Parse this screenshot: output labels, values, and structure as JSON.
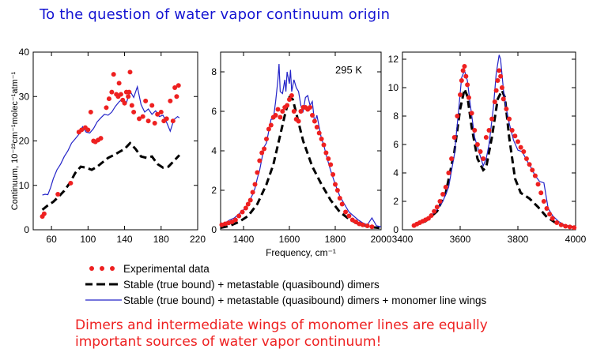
{
  "slide": {
    "title": "To the question of water vapor continuum origin",
    "conclusion_line1": "Dimers and intermediate wings of monomer lines are equally",
    "conclusion_line2": "important sources of water vapor continuum!"
  },
  "colors": {
    "experimental": "#ee2020",
    "dimers": "#000000",
    "dimers_wings": "#2323c8",
    "title": "#1414d2"
  },
  "legend": [
    {
      "key": "experimental",
      "label": "Experimental data",
      "style": "dots"
    },
    {
      "key": "dimers",
      "label": "Stable (true bound)  +  metastable (quasibound) dimers",
      "style": "dashed"
    },
    {
      "key": "dimers_wings",
      "label": "Stable (true bound)  +  metastable (quasibound) dimers + monomer line wings",
      "style": "solid"
    }
  ],
  "chart_data": [
    {
      "type": "line",
      "title": "",
      "xlabel": "",
      "ylabel": "Continuum,  10⁻²³cm⁻¹molec⁻¹atm⁻¹",
      "xlim": [
        40,
        220
      ],
      "ylim": [
        0,
        40
      ],
      "xticks": [
        60,
        100,
        140,
        180,
        220
      ],
      "yticks": [
        0,
        10,
        20,
        30,
        40
      ],
      "annotation": "",
      "series": [
        {
          "key": "experimental",
          "type": "scatter",
          "x": [
            50,
            52,
            67,
            81,
            90,
            93,
            97,
            100,
            103,
            106,
            108,
            111,
            114,
            120,
            123,
            126,
            128,
            131,
            133,
            134,
            136,
            138,
            140,
            142,
            144,
            145,
            146,
            148,
            150,
            156,
            160,
            163,
            166,
            170,
            173,
            176,
            180,
            183,
            186,
            190,
            193,
            195,
            197,
            199
          ],
          "y": [
            3,
            3.6,
            8,
            10.5,
            22,
            22.5,
            23,
            22.5,
            26.5,
            20,
            19.8,
            20.2,
            20.6,
            27.5,
            29.5,
            31,
            35,
            30.5,
            30,
            33,
            30.5,
            29.2,
            28.5,
            31,
            30,
            31,
            35.5,
            28,
            26.5,
            25,
            25.5,
            29,
            24.5,
            28,
            24,
            26,
            26.5,
            24.5,
            25,
            29,
            24.5,
            32,
            30,
            32.5
          ]
        },
        {
          "key": "dimers",
          "type": "line",
          "x": [
            50,
            56,
            62,
            68,
            74,
            80,
            86,
            92,
            98,
            104,
            110,
            116,
            122,
            128,
            134,
            140,
            146,
            152,
            158,
            164,
            170,
            176,
            182,
            188,
            194,
            200
          ],
          "y": [
            4.5,
            5.5,
            6.3,
            7.5,
            8.8,
            10.5,
            12.8,
            14.2,
            14.0,
            13.5,
            14.2,
            15.2,
            16.2,
            16.8,
            17.5,
            18.2,
            19.5,
            18.2,
            16.5,
            16.2,
            16.5,
            14.8,
            14.0,
            14.2,
            15.5,
            16.8
          ]
        },
        {
          "key": "dimers_wings",
          "type": "line",
          "x": [
            50,
            53,
            56,
            59,
            62,
            66,
            70,
            74,
            78,
            82,
            86,
            90,
            94,
            98,
            102,
            106,
            110,
            114,
            118,
            122,
            126,
            130,
            134,
            138,
            142,
            146,
            150,
            154,
            158,
            162,
            166,
            170,
            174,
            178,
            182,
            186,
            190,
            194,
            198,
            200
          ],
          "y": [
            7.8,
            8.0,
            7.9,
            9.5,
            11.5,
            13.5,
            14.8,
            16.5,
            17.8,
            19.5,
            20.5,
            21.5,
            23.2,
            22.0,
            21.8,
            22.8,
            24.3,
            25.2,
            26.0,
            25.8,
            26.5,
            27.8,
            28.8,
            29.5,
            28.6,
            31.2,
            29.8,
            32.2,
            28.2,
            26.5,
            27.2,
            26.0,
            26.8,
            25.5,
            25.8,
            24.2,
            22.2,
            24.8,
            25.5,
            25.2
          ]
        }
      ]
    },
    {
      "type": "line",
      "title": "",
      "xlabel": "Frequency,  cm⁻¹",
      "ylabel": "",
      "xlim": [
        1300,
        2000
      ],
      "ylim": [
        0,
        9
      ],
      "xticks": [
        1400,
        1600,
        1800,
        2000
      ],
      "yticks": [
        0,
        2,
        4,
        6,
        8
      ],
      "annotation": "295 K",
      "series": [
        {
          "key": "experimental",
          "type": "scatter",
          "x": [
            1305,
            1320,
            1335,
            1350,
            1365,
            1380,
            1395,
            1410,
            1420,
            1430,
            1440,
            1450,
            1460,
            1470,
            1480,
            1490,
            1500,
            1510,
            1520,
            1530,
            1540,
            1550,
            1560,
            1570,
            1580,
            1590,
            1600,
            1610,
            1620,
            1630,
            1640,
            1650,
            1660,
            1670,
            1680,
            1690,
            1700,
            1710,
            1720,
            1730,
            1740,
            1750,
            1760,
            1770,
            1780,
            1790,
            1800,
            1810,
            1820,
            1830,
            1845,
            1860,
            1875,
            1890,
            1905,
            1920,
            1940,
            1960
          ],
          "y": [
            0.25,
            0.3,
            0.35,
            0.4,
            0.5,
            0.7,
            0.9,
            1.1,
            1.3,
            1.5,
            1.9,
            2.3,
            2.9,
            3.5,
            3.9,
            4.1,
            4.6,
            5.1,
            5.3,
            5.7,
            5.8,
            6.1,
            5.7,
            6.0,
            6.2,
            6.3,
            6.6,
            6.8,
            6.0,
            5.6,
            5.5,
            6.0,
            6.2,
            6.2,
            6.1,
            6.2,
            5.8,
            5.5,
            5.2,
            4.9,
            4.6,
            4.3,
            3.9,
            3.6,
            3.3,
            2.8,
            2.3,
            2.0,
            1.6,
            1.3,
            0.9,
            0.7,
            0.5,
            0.4,
            0.3,
            0.25,
            0.2,
            0.15
          ]
        },
        {
          "key": "dimers",
          "type": "line",
          "x": [
            1300,
            1340,
            1380,
            1420,
            1460,
            1500,
            1530,
            1560,
            1580,
            1600,
            1615,
            1630,
            1660,
            1700,
            1740,
            1780,
            1820,
            1860,
            1900,
            1950,
            2000
          ],
          "y": [
            0.1,
            0.2,
            0.4,
            0.7,
            1.3,
            2.3,
            3.3,
            4.8,
            5.8,
            6.7,
            6.6,
            5.9,
            4.5,
            3.2,
            2.3,
            1.5,
            0.9,
            0.55,
            0.3,
            0.15,
            0.08
          ]
        },
        {
          "key": "dimers_wings",
          "type": "line",
          "x": [
            1300,
            1320,
            1340,
            1360,
            1380,
            1400,
            1420,
            1440,
            1450,
            1460,
            1470,
            1480,
            1490,
            1500,
            1510,
            1520,
            1530,
            1540,
            1550,
            1555,
            1560,
            1570,
            1580,
            1585,
            1590,
            1600,
            1605,
            1610,
            1620,
            1630,
            1640,
            1650,
            1660,
            1670,
            1680,
            1690,
            1700,
            1710,
            1720,
            1730,
            1740,
            1750,
            1760,
            1780,
            1800,
            1820,
            1840,
            1860,
            1880,
            1900,
            1920,
            1940,
            1960,
            1980,
            2000
          ],
          "y": [
            0.3,
            0.35,
            0.5,
            0.6,
            0.8,
            1.0,
            1.3,
            1.8,
            2.1,
            2.6,
            3.0,
            3.6,
            4.2,
            4.4,
            5.0,
            5.6,
            5.6,
            6.5,
            7.6,
            8.4,
            7.0,
            6.9,
            7.6,
            7.0,
            8.0,
            7.4,
            8.1,
            7.0,
            7.6,
            7.2,
            7.0,
            6.3,
            6.0,
            6.7,
            6.8,
            6.3,
            6.5,
            5.4,
            5.8,
            5.2,
            4.6,
            4.3,
            3.8,
            3.0,
            2.3,
            1.7,
            1.3,
            0.9,
            0.7,
            0.5,
            0.35,
            0.25,
            0.6,
            0.2,
            0.15
          ]
        }
      ]
    },
    {
      "type": "line",
      "title": "",
      "xlabel": "",
      "ylabel": "",
      "xlim": [
        3400,
        4000
      ],
      "ylim": [
        0,
        12.5
      ],
      "xticks": [
        3400,
        3600,
        3800,
        4000
      ],
      "yticks": [
        0,
        2,
        4,
        6,
        8,
        10,
        12
      ],
      "annotation": "",
      "series": [
        {
          "key": "experimental",
          "type": "scatter",
          "x": [
            3440,
            3450,
            3460,
            3470,
            3480,
            3490,
            3500,
            3510,
            3520,
            3530,
            3540,
            3550,
            3560,
            3570,
            3580,
            3590,
            3600,
            3605,
            3610,
            3615,
            3620,
            3625,
            3630,
            3640,
            3650,
            3660,
            3670,
            3680,
            3690,
            3700,
            3710,
            3720,
            3725,
            3730,
            3735,
            3740,
            3745,
            3750,
            3760,
            3770,
            3780,
            3790,
            3800,
            3810,
            3820,
            3830,
            3840,
            3850,
            3860,
            3870,
            3880,
            3890,
            3900,
            3910,
            3920,
            3935,
            3950,
            3965,
            3980,
            3995
          ],
          "y": [
            0.3,
            0.4,
            0.5,
            0.6,
            0.7,
            0.8,
            1.0,
            1.3,
            1.6,
            2.0,
            2.5,
            3.0,
            4.0,
            5.0,
            6.5,
            8.0,
            9.5,
            10.5,
            11.2,
            11.5,
            10.8,
            10.2,
            9.3,
            8.2,
            7.0,
            6.0,
            5.5,
            5.0,
            6.5,
            7.0,
            7.8,
            9.0,
            9.8,
            10.5,
            11.2,
            10.8,
            10.0,
            9.2,
            8.5,
            7.8,
            7.0,
            6.6,
            6.2,
            5.8,
            5.5,
            5.0,
            4.6,
            4.2,
            3.8,
            3.2,
            2.6,
            2.0,
            1.5,
            1.1,
            0.8,
            0.5,
            0.35,
            0.25,
            0.2,
            0.15
          ]
        },
        {
          "key": "dimers",
          "type": "line",
          "x": [
            3440,
            3480,
            3520,
            3550,
            3580,
            3600,
            3615,
            3625,
            3640,
            3660,
            3680,
            3690,
            3710,
            3730,
            3745,
            3755,
            3770,
            3790,
            3810,
            3840,
            3870,
            3900,
            3930,
            3960,
            4000
          ],
          "y": [
            0.3,
            0.6,
            1.3,
            2.6,
            5.5,
            8.5,
            9.9,
            9.4,
            7.2,
            5.0,
            4.2,
            4.4,
            6.5,
            9.2,
            9.8,
            9.3,
            6.5,
            3.6,
            2.6,
            2.2,
            1.6,
            0.9,
            0.5,
            0.3,
            0.15
          ]
        },
        {
          "key": "dimers_wings",
          "type": "line",
          "x": [
            3440,
            3460,
            3480,
            3500,
            3520,
            3540,
            3560,
            3580,
            3595,
            3605,
            3615,
            3625,
            3635,
            3650,
            3665,
            3680,
            3690,
            3700,
            3715,
            3725,
            3735,
            3740,
            3750,
            3760,
            3770,
            3785,
            3800,
            3815,
            3830,
            3845,
            3860,
            3875,
            3890,
            3905,
            3920,
            3940,
            3960,
            3980,
            4000
          ],
          "y": [
            0.4,
            0.5,
            0.7,
            1.0,
            1.4,
            2.0,
            3.0,
            5.3,
            8.5,
            10.7,
            11.2,
            10.5,
            8.8,
            6.5,
            5.5,
            4.5,
            5.0,
            6.0,
            8.6,
            11.0,
            12.3,
            12.0,
            9.8,
            8.5,
            7.5,
            6.3,
            5.6,
            5.5,
            4.9,
            4.4,
            3.8,
            3.4,
            3.3,
            1.5,
            1.0,
            0.6,
            0.35,
            0.25,
            0.15
          ]
        }
      ]
    }
  ]
}
